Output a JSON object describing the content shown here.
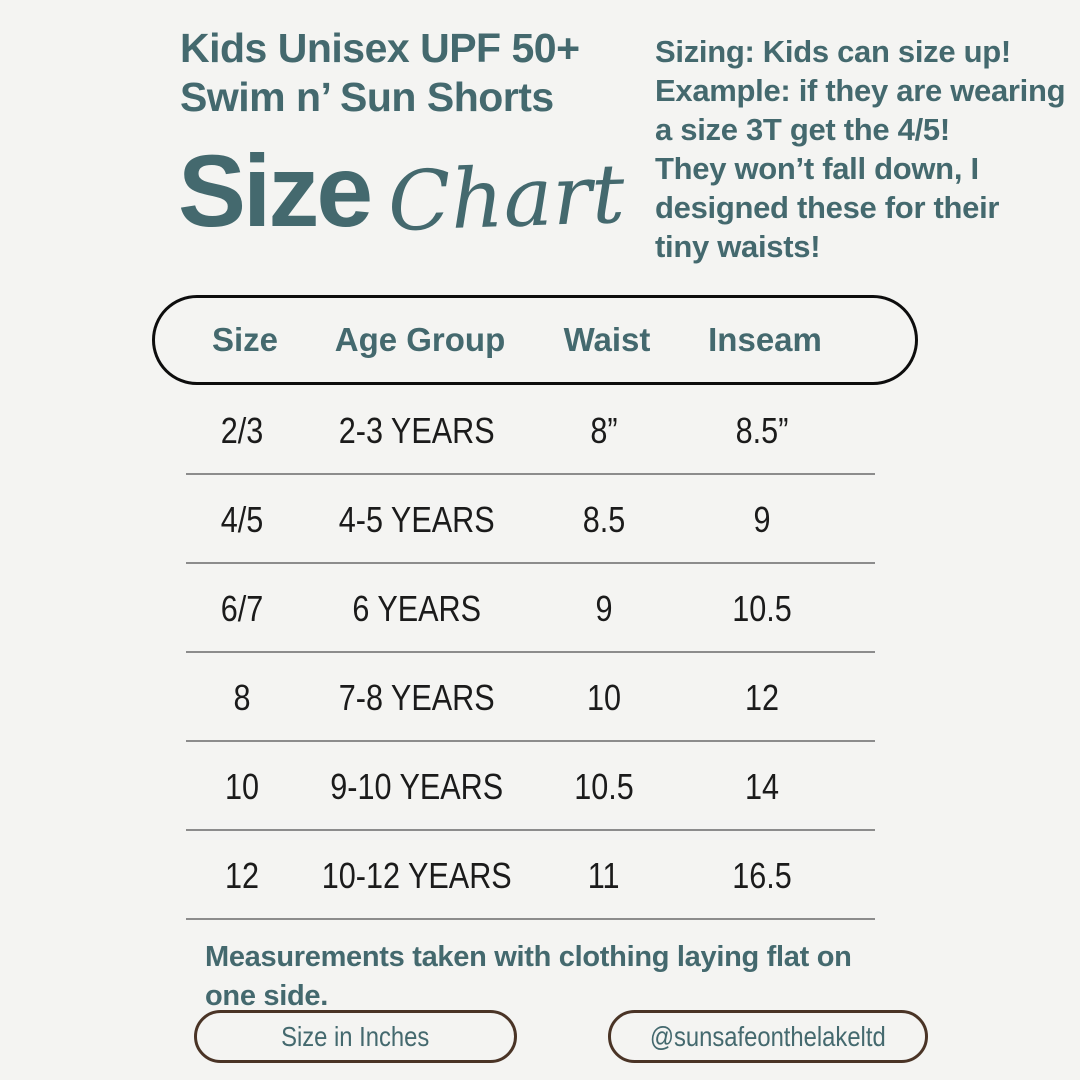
{
  "colors": {
    "background": "#f4f4f2",
    "accent_teal": "#44696e",
    "row_text": "#1b1b1b",
    "divider_gray": "#8c8c8c",
    "header_border": "#0d0d0d",
    "pill_border_brown": "#4a3426"
  },
  "header": {
    "product_title": "Kids Unisex UPF 50+\nSwim n’ Sun Shorts",
    "heading_size": "Size",
    "heading_chart": "Chart",
    "sizing_note": "Sizing: Kids can size up!\nExample: if they are wearing\na size 3T get the 4/5!\nThey won’t fall down, I\ndesigned these for their\ntiny waists!"
  },
  "table": {
    "columns": [
      "Size",
      "Age Group",
      "Waist",
      "Inseam"
    ],
    "rows": [
      {
        "size": "2/3",
        "age_group": "2-3 YEARS",
        "waist": "8”",
        "inseam": "8.5”"
      },
      {
        "size": "4/5",
        "age_group": "4-5 YEARS",
        "waist": "8.5",
        "inseam": "9"
      },
      {
        "size": "6/7",
        "age_group": "6 YEARS",
        "waist": "9",
        "inseam": "10.5"
      },
      {
        "size": "8",
        "age_group": "7-8 YEARS",
        "waist": "10",
        "inseam": "12"
      },
      {
        "size": "10",
        "age_group": "9-10 YEARS",
        "waist": "10.5",
        "inseam": "14"
      },
      {
        "size": "12",
        "age_group": "10-12 YEARS",
        "waist": "11",
        "inseam": "16.5"
      }
    ]
  },
  "footer": {
    "note": "Measurements taken with clothing laying flat on\none side.",
    "unit_pill_label": "Size in Inches",
    "handle_pill_label": "@sunsafeonthelakeltd"
  }
}
